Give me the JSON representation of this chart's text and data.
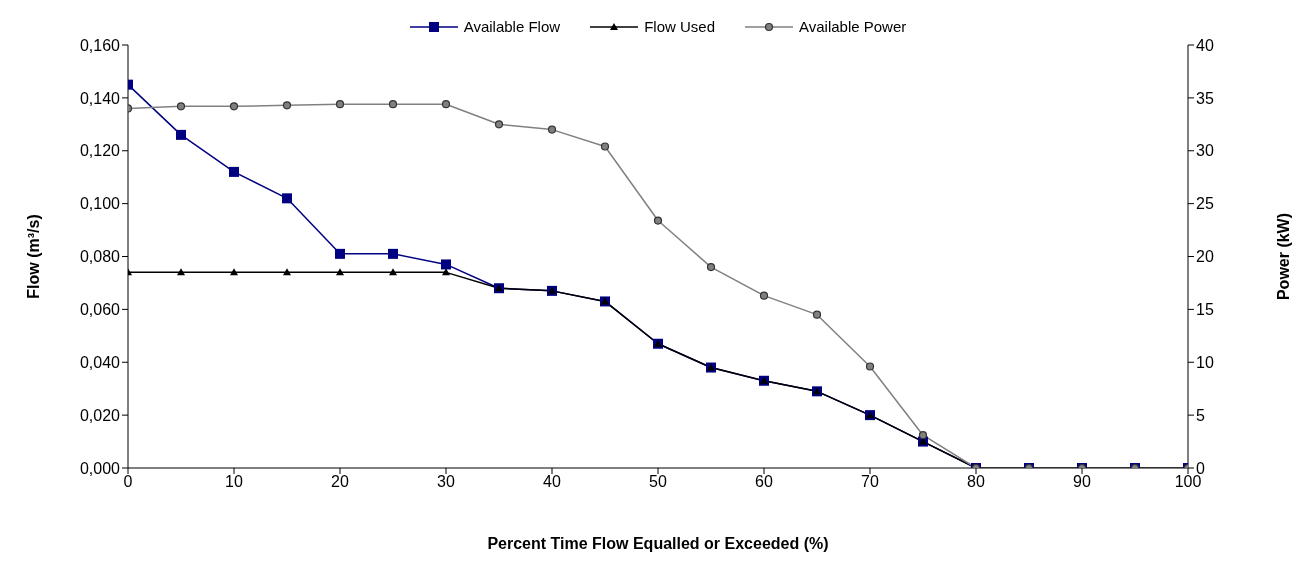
{
  "chart_data": {
    "type": "line",
    "xlabel": "Percent Time Flow Equalled or Exceeded (%)",
    "ylabel": "Flow (m³/s)",
    "y2label": "Power (kW)",
    "x": [
      0,
      5,
      10,
      15,
      20,
      25,
      30,
      35,
      40,
      45,
      50,
      55,
      60,
      65,
      70,
      75,
      80,
      85,
      90,
      95,
      100
    ],
    "xlim": [
      0,
      100
    ],
    "xticks": [
      0,
      10,
      20,
      30,
      40,
      50,
      60,
      70,
      80,
      90,
      100
    ],
    "ylim": [
      0,
      0.16
    ],
    "yticks": [
      {
        "value": 0,
        "label": "0,000"
      },
      {
        "value": 0.02,
        "label": "0,020"
      },
      {
        "value": 0.04,
        "label": "0,040"
      },
      {
        "value": 0.06,
        "label": "0,060"
      },
      {
        "value": 0.08,
        "label": "0,080"
      },
      {
        "value": 0.1,
        "label": "0,100"
      },
      {
        "value": 0.12,
        "label": "0,120"
      },
      {
        "value": 0.14,
        "label": "0,140"
      },
      {
        "value": 0.16,
        "label": "0,160"
      }
    ],
    "y2lim": [
      0,
      40
    ],
    "y2ticks": [
      0,
      5,
      10,
      15,
      20,
      25,
      30,
      35,
      40
    ],
    "grid": false,
    "legend": "top",
    "line_style": "solid",
    "series": [
      {
        "name": "Available Flow",
        "color": "#000080",
        "marker": "square",
        "values": [
          0.145,
          0.126,
          0.112,
          0.102,
          0.081,
          0.081,
          0.077,
          0.068,
          0.067,
          0.063,
          0.047,
          0.038,
          0.033,
          0.029,
          0.02,
          0.01,
          0,
          0,
          0,
          0,
          0
        ]
      },
      {
        "name": "Flow Used",
        "color": "#000000",
        "marker": "triangle",
        "values": [
          0.074,
          0.074,
          0.074,
          0.074,
          0.074,
          0.074,
          0.074,
          0.068,
          0.067,
          0.063,
          0.047,
          0.038,
          0.033,
          0.029,
          0.02,
          0.01,
          0,
          0,
          0,
          0,
          0
        ]
      },
      {
        "name": "Available Power",
        "color": "#808080",
        "marker": "circle",
        "axis": "y2",
        "values": [
          34.0,
          34.2,
          34.2,
          34.3,
          34.4,
          34.4,
          34.4,
          32.5,
          32.0,
          30.4,
          23.4,
          19.0,
          16.3,
          14.5,
          9.6,
          3.1,
          0,
          0,
          0,
          0,
          0
        ]
      }
    ]
  }
}
